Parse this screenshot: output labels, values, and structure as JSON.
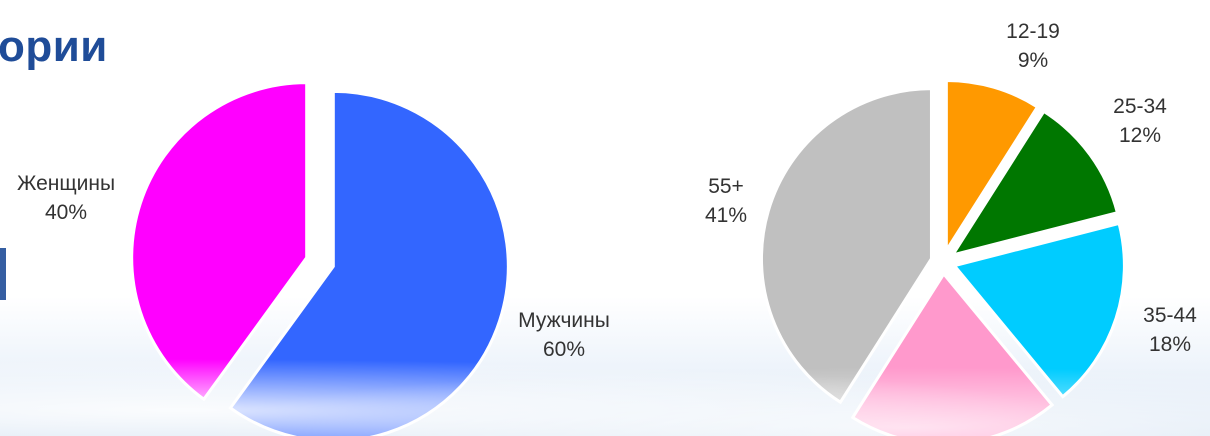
{
  "header": {
    "title": "ории"
  },
  "chart_data": [
    {
      "type": "pie",
      "slices": [
        {
          "label": "Мужчины",
          "percent_label": "60%",
          "value": 60,
          "color": "#3366ff"
        },
        {
          "label": "Женщины",
          "percent_label": "40%",
          "value": 40,
          "color": "#ff00ff"
        }
      ],
      "labels_outside": true
    },
    {
      "type": "pie",
      "slices": [
        {
          "label": "12-19",
          "percent_label": "9%",
          "value": 9,
          "color": "#ff9900"
        },
        {
          "label": "25-34",
          "percent_label": "12%",
          "value": 12,
          "color": "#007700"
        },
        {
          "label": "35-44",
          "percent_label": "18%",
          "value": 18,
          "color": "#00ccff"
        },
        {
          "label": "",
          "percent_label": "",
          "value": 20,
          "color": "#ff99cc"
        },
        {
          "label": "55+",
          "percent_label": "41%",
          "value": 41,
          "color": "#c0c0c0"
        }
      ],
      "labels_outside": true
    }
  ]
}
